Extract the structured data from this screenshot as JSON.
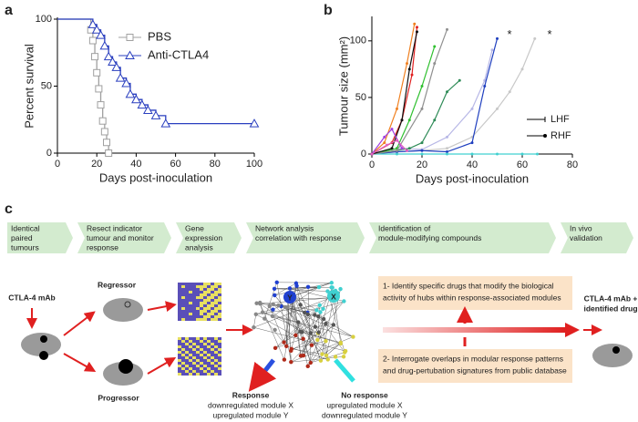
{
  "chart_data": [
    {
      "type": "line",
      "label": "a",
      "step": true,
      "xlabel": "Days post-inoculation",
      "ylabel": "Percent survival",
      "xlim": [
        0,
        100
      ],
      "xticks": [
        0,
        20,
        40,
        60,
        80,
        100
      ],
      "ylim": [
        0,
        100
      ],
      "yticks": [
        0,
        50,
        100
      ],
      "legend": "top-center",
      "series": [
        {
          "name": "PBS",
          "color": "#a0a0a0",
          "marker": "square",
          "x": [
            0,
            17,
            18,
            19,
            20,
            21,
            22,
            23,
            24,
            25,
            26
          ],
          "values": [
            100,
            92,
            84,
            72,
            60,
            48,
            36,
            24,
            16,
            8,
            0
          ]
        },
        {
          "name": "Anti-CTLA4",
          "color": "#2a3fbf",
          "marker": "triangle",
          "x": [
            0,
            18,
            20,
            22,
            24,
            26,
            28,
            30,
            32,
            35,
            37,
            40,
            43,
            46,
            50,
            55,
            100
          ],
          "values": [
            100,
            96,
            92,
            88,
            80,
            72,
            68,
            64,
            56,
            52,
            44,
            40,
            36,
            32,
            28,
            22,
            22
          ]
        }
      ]
    },
    {
      "type": "line",
      "label": "b",
      "step": false,
      "xlabel": "Days post-inoculation",
      "ylabel": "Tumour size (mm²)",
      "xlim": [
        0,
        80
      ],
      "xticks": [
        0,
        20,
        40,
        60,
        80
      ],
      "ylim": [
        0,
        120
      ],
      "yticks": [
        0,
        50,
        100
      ],
      "legend_items": [
        {
          "label": "LHF",
          "marker": "tick"
        },
        {
          "label": "RHF",
          "marker": "dot"
        }
      ],
      "annotations": [
        {
          "text": "*",
          "x": 54,
          "y": 105
        },
        {
          "text": "*",
          "x": 70,
          "y": 105
        }
      ],
      "series": [
        {
          "color": "#c8c8c8",
          "x": [
            0,
            10,
            20,
            30,
            40,
            50,
            55,
            60,
            65
          ],
          "values": [
            0,
            2,
            3,
            5,
            15,
            40,
            55,
            75,
            102
          ]
        },
        {
          "color": "#b7b7e6",
          "x": [
            0,
            10,
            20,
            30,
            40,
            45,
            48
          ],
          "values": [
            0,
            5,
            4,
            15,
            40,
            65,
            92
          ]
        },
        {
          "color": "#1f3fbf",
          "x": [
            0,
            10,
            20,
            30,
            40,
            45,
            50
          ],
          "values": [
            0,
            2,
            3,
            2,
            10,
            60,
            102
          ]
        },
        {
          "color": "#40d0d0",
          "x": [
            0,
            10,
            20,
            30,
            40,
            50,
            60,
            66
          ],
          "values": [
            0,
            0,
            0,
            0,
            0,
            0,
            0,
            0
          ]
        },
        {
          "color": "#2e8b57",
          "x": [
            0,
            15,
            20,
            25,
            30,
            35
          ],
          "values": [
            0,
            5,
            10,
            30,
            55,
            65
          ]
        },
        {
          "color": "#30c030",
          "x": [
            0,
            10,
            15,
            20,
            25
          ],
          "values": [
            0,
            5,
            30,
            60,
            95
          ]
        },
        {
          "color": "#909090",
          "x": [
            0,
            10,
            20,
            25,
            30
          ],
          "values": [
            0,
            3,
            40,
            80,
            110
          ]
        },
        {
          "color": "#f08020",
          "x": [
            0,
            5,
            10,
            14,
            17
          ],
          "values": [
            0,
            10,
            40,
            80,
            115
          ]
        },
        {
          "color": "#e02020",
          "x": [
            0,
            8,
            12,
            16,
            18
          ],
          "values": [
            0,
            10,
            30,
            70,
            112
          ]
        },
        {
          "color": "#111111",
          "x": [
            0,
            8,
            12,
            15,
            18
          ],
          "values": [
            0,
            5,
            30,
            75,
            108
          ]
        },
        {
          "color": "#a040e0",
          "x": [
            0,
            5,
            8,
            12
          ],
          "values": [
            0,
            15,
            22,
            5
          ]
        },
        {
          "color": "#e060c0",
          "x": [
            0,
            6,
            10,
            14
          ],
          "values": [
            0,
            8,
            12,
            3
          ]
        }
      ]
    }
  ],
  "workflow": {
    "label": "c",
    "steps": [
      {
        "lines": [
          "Identical",
          "paired",
          "tumours"
        ]
      },
      {
        "lines": [
          "Resect indicator",
          "tumour and monitor",
          "response"
        ]
      },
      {
        "lines": [
          "Gene",
          "expression",
          "analysis"
        ]
      },
      {
        "lines": [
          "Network analysis",
          "correlation with response"
        ]
      },
      {
        "lines": [
          "Identification of",
          "module-modifying compounds"
        ]
      },
      {
        "lines": [
          "In vivo",
          "validation"
        ]
      }
    ],
    "treatment": "CTLA-4 mAb",
    "regressor": "Regressor",
    "progressor": "Progressor",
    "network_labels": [
      "Y",
      "X"
    ],
    "box1": {
      "lines": [
        "1- Identify specific drugs that modify the biological",
        "activity of hubs within response-associated modules"
      ]
    },
    "box2": {
      "lines": [
        "2- Interrogate overlaps in modular response patterns",
        "and drug-pertubation signatures from public database"
      ]
    },
    "validation": {
      "lines": [
        "CTLA-4 mAb +",
        "identified drug"
      ]
    },
    "response": {
      "title": "Response",
      "lines": [
        "downregulated module X",
        "upregulated module Y"
      ]
    },
    "no_response": {
      "title": "No response",
      "lines": [
        "upregulated module X",
        "downregulated module Y"
      ]
    }
  }
}
